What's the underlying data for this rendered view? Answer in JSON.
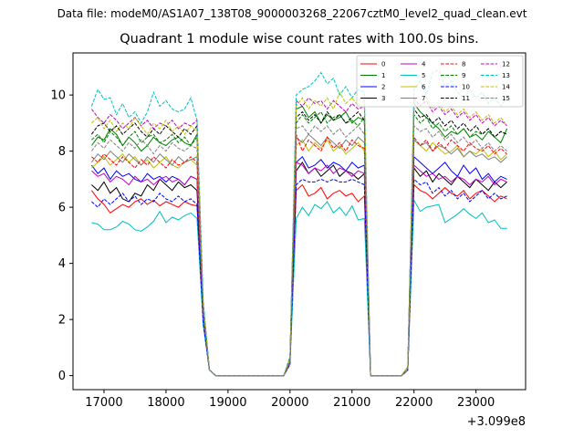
{
  "suptitle": "Data file: modeM0/AS1A07_138T08_9000003268_22067cztM0_level2_quad_clean.evt",
  "chart_data": {
    "type": "line",
    "title": "Quadrant 1 module wise count rates with 100.0s bins.",
    "xlabel": "",
    "ylabel": "",
    "x_offset_label": "+3.099e8",
    "xlim": [
      16500,
      23800
    ],
    "ylim": [
      -0.5,
      11.5
    ],
    "xticks": [
      17000,
      18000,
      19000,
      20000,
      21000,
      22000,
      23000
    ],
    "yticks": [
      0,
      2,
      4,
      6,
      8,
      10
    ],
    "grid": false,
    "legend_position": "top-right",
    "legend_columns": 4,
    "x": [
      16800,
      16900,
      17000,
      17100,
      17200,
      17300,
      17400,
      17500,
      17600,
      17700,
      17800,
      17900,
      18000,
      18100,
      18200,
      18300,
      18400,
      18500,
      18600,
      18700,
      18800,
      19900,
      20000,
      20100,
      20200,
      20300,
      20400,
      20500,
      20600,
      20700,
      20800,
      20900,
      21000,
      21100,
      21200,
      21300,
      21400,
      21800,
      21900,
      22000,
      22100,
      22200,
      22300,
      22400,
      22500,
      22600,
      22700,
      22800,
      22900,
      23000,
      23100,
      23200,
      23300,
      23400,
      23500
    ],
    "series": [
      {
        "name": "0",
        "color": "#ff0000",
        "dash": "solid",
        "values": [
          6.6,
          6.3,
          6.1,
          5.8,
          5.95,
          6.1,
          6.0,
          6.2,
          6.3,
          6.1,
          6.25,
          6.05,
          6.2,
          6.1,
          6.0,
          6.2,
          6.1,
          6.05,
          2.0,
          0.2,
          0.0,
          0.0,
          0.5,
          6.6,
          6.8,
          6.4,
          6.5,
          6.7,
          6.3,
          6.5,
          6.6,
          6.4,
          6.5,
          6.2,
          6.4,
          0.0,
          0.0,
          0.0,
          0.2,
          6.8,
          6.6,
          6.5,
          6.3,
          6.5,
          6.7,
          6.5,
          6.4,
          6.6,
          6.3,
          6.5,
          6.6,
          6.4,
          6.2,
          6.4,
          6.3
        ]
      },
      {
        "name": "1",
        "color": "#008000",
        "dash": "solid",
        "values": [
          8.2,
          8.5,
          8.4,
          8.8,
          8.6,
          8.2,
          8.5,
          8.3,
          8.0,
          8.2,
          8.5,
          8.3,
          8.2,
          8.4,
          8.5,
          8.3,
          8.2,
          8.6,
          2.4,
          0.2,
          0.0,
          0.0,
          0.6,
          9.5,
          9.6,
          9.2,
          9.4,
          9.0,
          9.3,
          9.1,
          9.2,
          9.4,
          9.0,
          9.2,
          9.1,
          0.0,
          0.0,
          0.0,
          0.3,
          9.7,
          9.4,
          9.2,
          9.0,
          8.8,
          8.5,
          8.7,
          8.6,
          8.8,
          8.5,
          8.6,
          8.4,
          8.7,
          8.5,
          8.3,
          8.8
        ]
      },
      {
        "name": "2",
        "color": "#0000ff",
        "dash": "solid",
        "values": [
          7.5,
          7.2,
          7.4,
          7.0,
          7.3,
          7.1,
          7.2,
          7.0,
          6.9,
          7.2,
          7.0,
          7.1,
          6.9,
          7.1,
          7.0,
          6.8,
          7.1,
          7.0,
          2.0,
          0.2,
          0.0,
          0.0,
          0.5,
          7.6,
          7.8,
          7.4,
          7.5,
          7.7,
          7.4,
          7.6,
          7.5,
          7.3,
          7.6,
          7.4,
          7.5,
          0.0,
          0.0,
          0.0,
          0.2,
          7.8,
          7.6,
          7.4,
          7.2,
          7.4,
          7.6,
          7.3,
          7.1,
          7.5,
          7.2,
          7.4,
          7.0,
          7.2,
          6.9,
          7.1,
          7.0
        ]
      },
      {
        "name": "3",
        "color": "#000000",
        "dash": "solid",
        "values": [
          6.8,
          6.6,
          6.9,
          6.5,
          6.7,
          6.3,
          6.2,
          6.5,
          6.4,
          6.8,
          6.6,
          7.0,
          6.8,
          6.6,
          6.9,
          6.7,
          6.8,
          6.6,
          2.0,
          0.2,
          0.0,
          0.0,
          0.5,
          7.3,
          7.6,
          7.2,
          7.4,
          7.1,
          7.3,
          7.5,
          7.1,
          7.3,
          7.2,
          7.0,
          7.2,
          0.0,
          0.0,
          0.0,
          0.2,
          7.4,
          7.1,
          7.3,
          6.9,
          7.2,
          7.0,
          6.8,
          7.1,
          6.9,
          6.7,
          7.0,
          6.8,
          6.6,
          6.9,
          6.7,
          6.9
        ]
      },
      {
        "name": "4",
        "color": "#c000c0",
        "dash": "solid",
        "values": [
          7.3,
          7.1,
          7.2,
          6.9,
          7.1,
          7.0,
          6.8,
          7.1,
          6.9,
          7.0,
          6.8,
          7.0,
          7.1,
          6.9,
          7.0,
          6.8,
          7.1,
          7.0,
          2.0,
          0.2,
          0.0,
          0.0,
          0.5,
          7.6,
          7.5,
          7.2,
          7.4,
          7.3,
          7.5,
          7.2,
          7.4,
          7.3,
          7.1,
          7.3,
          7.2,
          0.0,
          0.0,
          0.0,
          0.2,
          7.5,
          7.3,
          7.1,
          7.2,
          7.0,
          7.1,
          6.9,
          7.1,
          7.0,
          6.8,
          7.0,
          6.9,
          7.1,
          6.8,
          7.0,
          6.9
        ]
      },
      {
        "name": "5",
        "color": "#00bfbf",
        "dash": "solid",
        "values": [
          5.45,
          5.4,
          5.2,
          5.2,
          5.3,
          5.5,
          5.4,
          5.2,
          5.15,
          5.3,
          5.5,
          5.85,
          5.45,
          5.65,
          5.55,
          5.7,
          5.8,
          5.6,
          1.8,
          0.2,
          0.0,
          0.0,
          0.4,
          5.6,
          6.0,
          5.7,
          6.1,
          5.95,
          6.2,
          5.8,
          6.0,
          5.7,
          6.05,
          5.55,
          5.6,
          0.0,
          0.0,
          0.0,
          0.2,
          6.25,
          5.85,
          6.0,
          6.05,
          6.1,
          5.45,
          5.6,
          5.75,
          5.95,
          5.75,
          5.6,
          5.8,
          5.45,
          5.55,
          5.25,
          5.25
        ]
      },
      {
        "name": "6",
        "color": "#bfbf00",
        "dash": "solid",
        "values": [
          7.4,
          7.6,
          7.8,
          7.5,
          7.7,
          7.9,
          7.6,
          7.8,
          7.5,
          7.7,
          7.4,
          7.6,
          7.8,
          7.5,
          7.4,
          7.6,
          7.7,
          7.5,
          2.2,
          0.2,
          0.0,
          0.0,
          0.5,
          8.2,
          8.4,
          8.0,
          8.3,
          8.1,
          8.4,
          8.0,
          8.2,
          7.9,
          8.1,
          8.3,
          8.0,
          0.0,
          0.0,
          0.0,
          0.2,
          8.4,
          8.2,
          8.0,
          8.3,
          8.1,
          7.9,
          8.0,
          8.2,
          7.8,
          8.0,
          7.9,
          8.1,
          7.8,
          8.0,
          7.7,
          7.9
        ]
      },
      {
        "name": "7",
        "color": "#808080",
        "dash": "solid",
        "values": [
          7.6,
          7.9,
          7.7,
          8.0,
          7.8,
          7.6,
          7.9,
          7.7,
          7.5,
          7.8,
          7.6,
          7.9,
          7.7,
          7.5,
          7.8,
          7.6,
          7.7,
          7.8,
          2.2,
          0.2,
          0.0,
          0.0,
          0.5,
          8.5,
          8.3,
          8.6,
          8.4,
          8.2,
          8.5,
          8.3,
          8.1,
          8.4,
          8.2,
          8.5,
          8.3,
          0.0,
          0.0,
          0.0,
          0.2,
          8.4,
          8.2,
          8.3,
          8.0,
          8.2,
          8.1,
          7.9,
          8.1,
          7.8,
          8.0,
          7.8,
          7.9,
          7.7,
          7.8,
          7.6,
          7.8
        ]
      },
      {
        "name": "8",
        "color": "#ff0000",
        "dash": "dashed",
        "values": [
          7.8,
          7.6,
          7.9,
          7.7,
          7.5,
          7.8,
          7.6,
          7.4,
          7.7,
          7.5,
          7.8,
          7.6,
          7.4,
          7.7,
          7.5,
          7.6,
          7.8,
          7.6,
          2.2,
          0.2,
          0.0,
          0.0,
          0.5,
          8.6,
          8.0,
          8.4,
          8.2,
          8.0,
          8.5,
          8.1,
          8.3,
          8.0,
          8.4,
          8.2,
          8.1,
          0.0,
          0.0,
          0.0,
          0.2,
          8.5,
          8.2,
          8.4,
          8.0,
          8.3,
          8.1,
          8.4,
          8.2,
          8.0,
          8.3,
          8.1,
          8.0,
          8.2,
          7.9,
          8.1,
          7.9
        ]
      },
      {
        "name": "9",
        "color": "#008000",
        "dash": "dashed",
        "values": [
          8.4,
          8.6,
          8.3,
          8.7,
          8.5,
          8.2,
          8.5,
          8.7,
          8.3,
          8.5,
          8.6,
          8.3,
          8.4,
          8.6,
          8.3,
          8.5,
          8.2,
          8.5,
          2.4,
          0.2,
          0.0,
          0.0,
          0.6,
          9.0,
          9.3,
          9.0,
          9.2,
          9.4,
          9.0,
          9.2,
          9.3,
          9.0,
          9.1,
          8.9,
          9.2,
          0.0,
          0.0,
          0.0,
          0.3,
          9.3,
          9.0,
          9.2,
          8.8,
          9.0,
          8.7,
          8.9,
          8.6,
          8.8,
          8.5,
          8.7,
          8.6,
          8.8,
          8.5,
          8.7,
          8.6
        ]
      },
      {
        "name": "10",
        "color": "#0000ff",
        "dash": "dashed",
        "values": [
          6.2,
          6.0,
          6.3,
          6.1,
          6.3,
          6.5,
          6.2,
          6.4,
          6.1,
          6.3,
          6.2,
          6.5,
          6.3,
          6.2,
          6.4,
          6.2,
          6.3,
          6.1,
          1.9,
          0.2,
          0.0,
          0.0,
          0.4,
          6.8,
          7.0,
          6.9,
          6.9,
          7.0,
          6.9,
          7.0,
          6.9,
          6.9,
          7.0,
          6.9,
          6.8,
          0.0,
          0.0,
          0.0,
          0.2,
          7.0,
          6.8,
          6.9,
          6.5,
          6.7,
          6.4,
          6.6,
          6.3,
          6.5,
          6.2,
          6.4,
          6.6,
          6.3,
          6.5,
          6.3,
          6.4
        ]
      },
      {
        "name": "11",
        "color": "#000000",
        "dash": "dashed",
        "values": [
          8.6,
          8.9,
          9.0,
          8.7,
          8.9,
          8.6,
          8.8,
          9.0,
          8.7,
          8.5,
          8.8,
          8.6,
          8.9,
          8.7,
          8.5,
          8.8,
          8.6,
          8.9,
          2.4,
          0.2,
          0.0,
          0.0,
          0.6,
          9.2,
          9.4,
          9.1,
          9.3,
          9.0,
          9.4,
          9.1,
          9.3,
          9.0,
          9.2,
          9.4,
          9.1,
          0.0,
          0.0,
          0.0,
          0.3,
          9.5,
          9.2,
          9.3,
          9.0,
          9.2,
          8.9,
          9.1,
          8.8,
          9.0,
          8.7,
          8.9,
          8.6,
          8.8,
          8.5,
          8.7,
          8.6
        ]
      },
      {
        "name": "12",
        "color": "#c000c0",
        "dash": "dashed",
        "values": [
          9.5,
          9.2,
          9.0,
          9.3,
          9.1,
          8.8,
          9.0,
          9.2,
          8.9,
          9.1,
          8.8,
          9.0,
          8.9,
          9.1,
          8.8,
          9.0,
          8.9,
          9.1,
          2.6,
          0.2,
          0.0,
          0.0,
          0.6,
          9.8,
          9.6,
          9.9,
          9.7,
          9.8,
          9.5,
          9.8,
          9.6,
          9.4,
          9.7,
          9.5,
          9.6,
          0.0,
          0.0,
          0.0,
          0.3,
          9.9,
          9.6,
          9.8,
          9.4,
          9.6,
          9.3,
          9.5,
          9.2,
          9.4,
          9.1,
          9.3,
          9.0,
          9.2,
          8.9,
          9.1,
          8.9
        ]
      },
      {
        "name": "13",
        "color": "#00bfbf",
        "dash": "dashed",
        "values": [
          9.6,
          10.2,
          9.85,
          9.9,
          9.3,
          9.7,
          9.2,
          9.4,
          9.0,
          9.4,
          10.1,
          9.6,
          9.8,
          9.5,
          9.4,
          9.5,
          9.9,
          9.1,
          2.7,
          0.2,
          0.0,
          0.0,
          0.7,
          10.0,
          10.2,
          10.3,
          10.5,
          10.8,
          10.4,
          10.6,
          10.0,
          10.3,
          9.9,
          10.2,
          10.1,
          0.0,
          0.0,
          0.0,
          0.3,
          10.2,
          10.5,
          10.0,
          10.8,
          10.9,
          10.3,
          10.5,
          10.1,
          9.9,
          10.2,
          9.9,
          10.1,
          9.7,
          9.9,
          9.6,
          9.9
        ]
      },
      {
        "name": "14",
        "color": "#bfbf00",
        "dash": "dashed",
        "values": [
          9.0,
          9.2,
          8.8,
          9.1,
          8.7,
          9.0,
          8.8,
          9.2,
          8.9,
          8.6,
          9.0,
          8.8,
          9.1,
          8.7,
          8.9,
          8.6,
          8.9,
          8.7,
          2.5,
          0.2,
          0.0,
          0.0,
          0.6,
          9.6,
          9.9,
          9.5,
          9.8,
          9.6,
          9.9,
          9.5,
          10.1,
          9.7,
          9.9,
          9.6,
          9.8,
          0.0,
          0.0,
          0.0,
          0.3,
          9.8,
          9.6,
          9.9,
          9.5,
          9.7,
          9.4,
          9.6,
          9.3,
          9.5,
          9.2,
          9.4,
          9.1,
          9.3,
          9.0,
          9.2,
          8.9
        ]
      },
      {
        "name": "15",
        "color": "#808080",
        "dash": "dashed",
        "values": [
          8.0,
          8.3,
          8.1,
          8.4,
          8.2,
          8.0,
          8.3,
          8.1,
          8.4,
          8.2,
          7.9,
          8.2,
          8.0,
          8.3,
          8.1,
          8.0,
          8.2,
          8.1,
          2.3,
          0.2,
          0.0,
          0.0,
          0.5,
          8.8,
          8.9,
          8.6,
          8.9,
          8.7,
          8.9,
          8.6,
          8.8,
          8.5,
          8.7,
          8.9,
          8.6,
          0.0,
          0.0,
          0.0,
          0.2,
          8.9,
          8.7,
          8.8,
          8.5,
          8.7,
          8.4,
          8.6,
          8.3,
          8.5,
          8.2,
          8.4,
          8.1,
          8.3,
          8.0,
          8.2,
          8.0
        ]
      }
    ]
  }
}
